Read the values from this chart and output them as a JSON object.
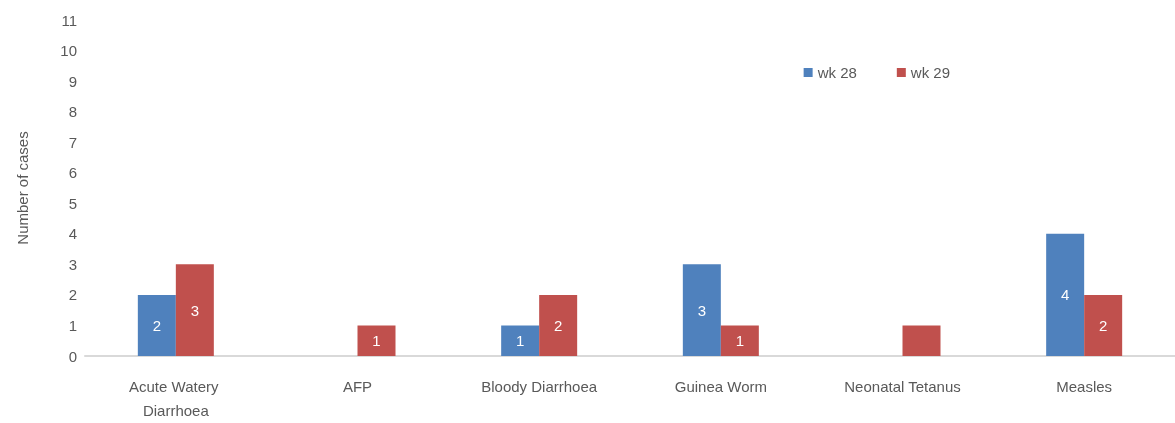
{
  "chart_data": {
    "type": "bar",
    "ylabel": "Number of cases",
    "categories": [
      "Acute Watery Diarrhoea",
      "AFP",
      "Bloody Diarrhoea",
      "Guinea Worm",
      "Neonatal Tetanus",
      "Measles"
    ],
    "series": [
      {
        "name": "wk 28",
        "color": "#4f81bd",
        "values": [
          2,
          null,
          1,
          3,
          null,
          4
        ],
        "value_labels": [
          "2",
          null,
          "1",
          "3",
          null,
          "4"
        ]
      },
      {
        "name": "wk 29",
        "color": "#c0504d",
        "values": [
          3,
          1,
          2,
          1,
          1,
          2
        ],
        "value_labels": [
          "3",
          "1",
          "2",
          "1",
          null,
          "2"
        ]
      }
    ],
    "ylim": [
      0,
      11
    ],
    "yticks": [
      0,
      1,
      2,
      3,
      4,
      5,
      6,
      7,
      8,
      9,
      10,
      11
    ],
    "grid": false,
    "legend": "top right"
  }
}
